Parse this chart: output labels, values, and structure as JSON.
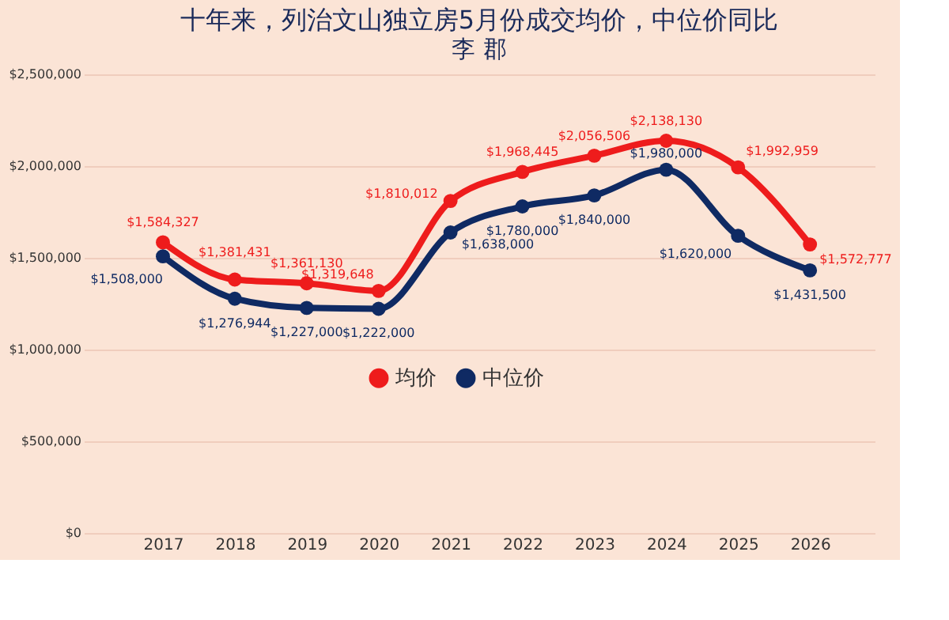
{
  "chart_data": {
    "type": "line",
    "title": "十年来，列治文山独立房5月份成交均价，中位价同比",
    "subtitle": "李 郡",
    "categories": [
      "2017",
      "2018",
      "2019",
      "2020",
      "2021",
      "2022",
      "2023",
      "2024",
      "2025",
      "2026"
    ],
    "series": [
      {
        "name": "均价",
        "color": "#ee1c1c",
        "values": [
          1584327,
          1381431,
          1361130,
          1319648,
          1810012,
          1968445,
          2056506,
          2138130,
          1992959,
          1572777
        ],
        "value_labels": [
          "$1,584,327",
          "$1,381,431",
          "$1,361,130",
          "$1,319,648",
          "$1,810,012",
          "$1,968,445",
          "$2,056,506",
          "$2,138,130",
          "$1,992,959",
          "$1,572,777"
        ]
      },
      {
        "name": "中位价",
        "color": "#0f2a63",
        "values": [
          1508000,
          1276944,
          1227000,
          1222000,
          1638000,
          1780000,
          1840000,
          1980000,
          1620000,
          1431500
        ],
        "value_labels": [
          "$1,508,000",
          "$1,276,944",
          "$1,227,000",
          "$1,222,000",
          "$1,638,000",
          "$1,780,000",
          "$1,840,000",
          "$1,980,000",
          "$1,620,000",
          "$1,431,500"
        ]
      }
    ],
    "ylim": [
      0,
      2500000
    ],
    "yticks": [
      {
        "value": 0,
        "label": "$0"
      },
      {
        "value": 500000,
        "label": "$500,000"
      },
      {
        "value": 1000000,
        "label": "$1,000,000"
      },
      {
        "value": 1500000,
        "label": "$1,500,000"
      },
      {
        "value": 2000000,
        "label": "$2,000,000"
      },
      {
        "value": 2500000,
        "label": "$2,500,000"
      }
    ],
    "grid": "y",
    "legend": "center",
    "marker": "circle",
    "line_style": "solid"
  }
}
